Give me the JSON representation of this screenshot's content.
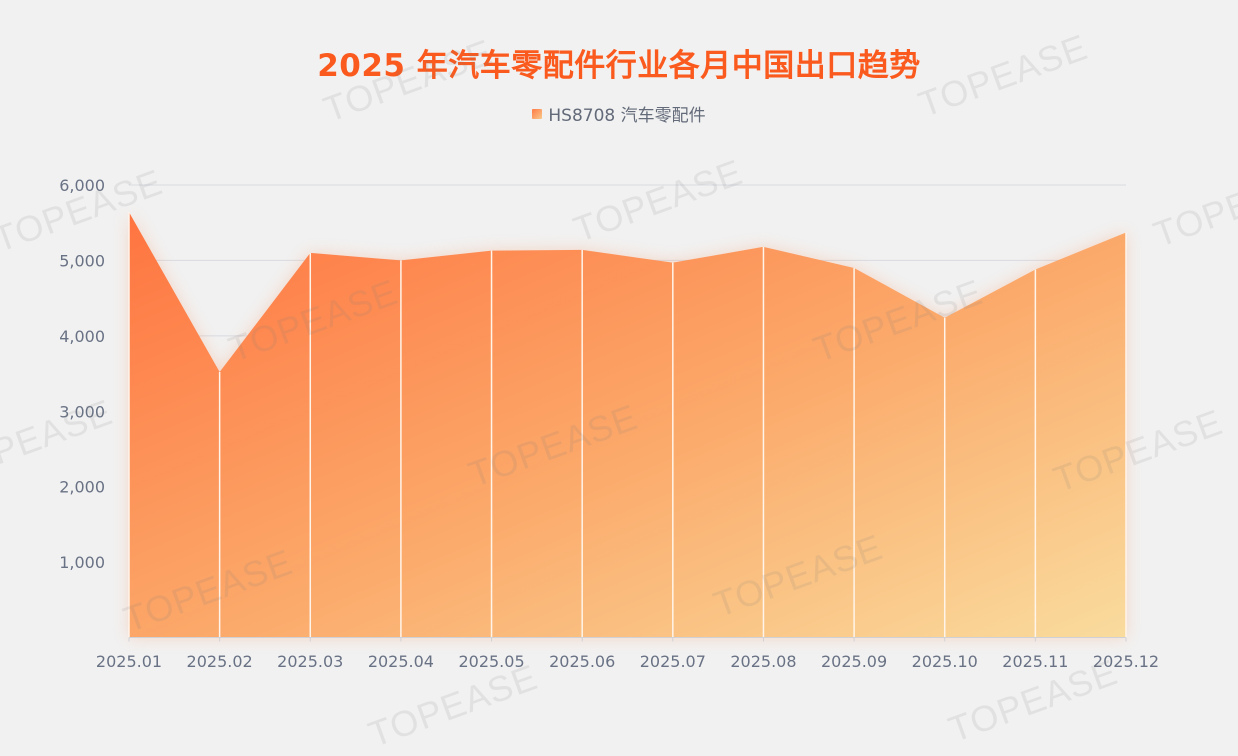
{
  "title": "2025 年汽车零配件行业各月中国出口趋势",
  "legend": {
    "label": "HS8708 汽车零配件"
  },
  "watermark": "TOPEASE",
  "colors": {
    "title": "#fb5a1e",
    "area_start": "#ff7440",
    "area_end": "#f9d99a",
    "grid": "#d6d8de",
    "axis_text": "#697285"
  },
  "chart_data": {
    "type": "area",
    "title": "2025 年汽车零配件行业各月中国出口趋势",
    "xlabel": "",
    "ylabel": "",
    "categories": [
      "2025.01",
      "2025.02",
      "2025.03",
      "2025.04",
      "2025.05",
      "2025.06",
      "2025.07",
      "2025.08",
      "2025.09",
      "2025.10",
      "2025.11",
      "2025.12"
    ],
    "series": [
      {
        "name": "HS8708 汽车零配件",
        "values": [
          5640,
          3520,
          5100,
          5000,
          5130,
          5140,
          4970,
          5180,
          4900,
          4240,
          4880,
          5370
        ]
      }
    ],
    "yticks": [
      "1,000",
      "2,000",
      "3,000",
      "4,000",
      "5,000",
      "6,000"
    ],
    "ylim": [
      0,
      6000
    ],
    "grid": true,
    "legend_position": "top"
  }
}
